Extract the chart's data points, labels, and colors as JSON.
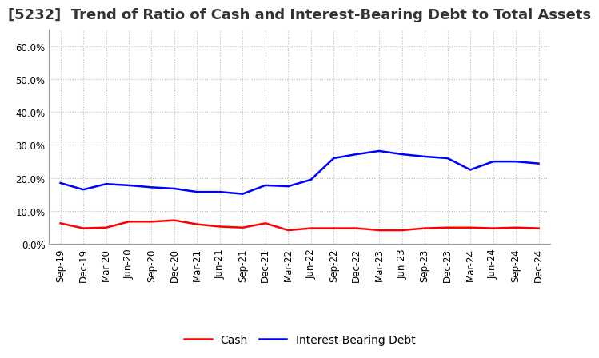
{
  "title": "[5232]  Trend of Ratio of Cash and Interest-Bearing Debt to Total Assets",
  "x_labels": [
    "Sep-19",
    "Dec-19",
    "Mar-20",
    "Jun-20",
    "Sep-20",
    "Dec-20",
    "Mar-21",
    "Jun-21",
    "Sep-21",
    "Dec-21",
    "Mar-22",
    "Jun-22",
    "Sep-22",
    "Dec-22",
    "Mar-23",
    "Jun-23",
    "Sep-23",
    "Dec-23",
    "Mar-24",
    "Jun-24",
    "Sep-24",
    "Dec-24"
  ],
  "cash": [
    0.063,
    0.048,
    0.05,
    0.068,
    0.068,
    0.072,
    0.06,
    0.053,
    0.05,
    0.063,
    0.042,
    0.048,
    0.048,
    0.048,
    0.042,
    0.042,
    0.048,
    0.05,
    0.05,
    0.048,
    0.05,
    0.048
  ],
  "interest_bearing_debt": [
    0.185,
    0.165,
    0.182,
    0.178,
    0.172,
    0.168,
    0.158,
    0.158,
    0.152,
    0.178,
    0.175,
    0.195,
    0.26,
    0.272,
    0.282,
    0.272,
    0.265,
    0.26,
    0.225,
    0.25,
    0.25,
    0.244
  ],
  "cash_color": "#FF0000",
  "debt_color": "#0000FF",
  "background_color": "#FFFFFF",
  "ylim": [
    0.0,
    0.65
  ],
  "yticks": [
    0.0,
    0.1,
    0.2,
    0.3,
    0.4,
    0.5,
    0.6
  ],
  "legend_cash": "Cash",
  "legend_debt": "Interest-Bearing Debt",
  "title_fontsize": 13,
  "axis_fontsize": 8.5,
  "legend_fontsize": 10,
  "grid_color": "#BBBBBB",
  "spine_color": "#999999"
}
